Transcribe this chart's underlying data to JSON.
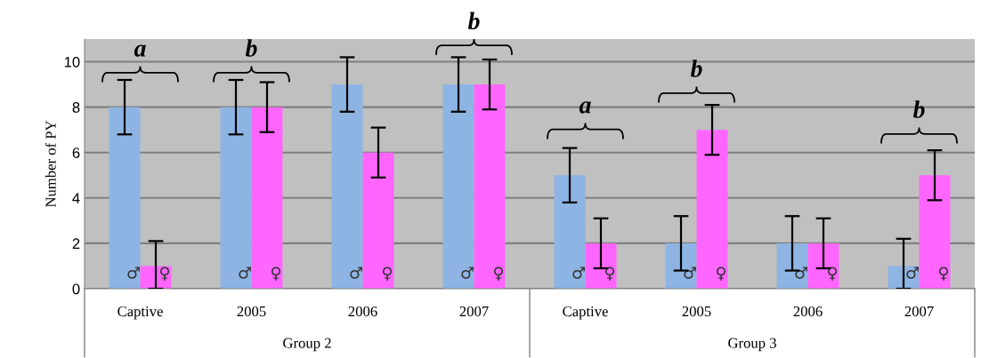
{
  "chart_data": {
    "type": "bar",
    "ylabel": "Number of PY",
    "categories": [
      "Captive",
      "2005",
      "2006",
      "2007",
      "Captive",
      "2005",
      "2006",
      "2007"
    ],
    "series": [
      {
        "name": "♂",
        "color": "#8eb4e3",
        "values": [
          8,
          8,
          9,
          9,
          5,
          2,
          2,
          1
        ],
        "errors": [
          [
            6.8,
            9.2
          ],
          [
            6.8,
            9.2
          ],
          [
            7.8,
            10.2
          ],
          [
            7.8,
            10.2
          ],
          [
            3.8,
            6.2
          ],
          [
            0.8,
            3.2
          ],
          [
            0.8,
            3.2
          ],
          [
            0,
            2.2
          ]
        ]
      },
      {
        "name": "♀",
        "color": "#ff66ff",
        "values": [
          1,
          8,
          6,
          9,
          2,
          7,
          2,
          5
        ],
        "errors": [
          [
            0,
            2.1
          ],
          [
            6.9,
            9.1
          ],
          [
            4.9,
            7.1
          ],
          [
            7.9,
            10.1
          ],
          [
            0.9,
            3.1
          ],
          [
            5.9,
            8.1
          ],
          [
            0.9,
            3.1
          ],
          [
            3.9,
            6.1
          ]
        ]
      }
    ],
    "ylim": [
      0,
      11
    ],
    "yticks": [
      0,
      2,
      4,
      6,
      8,
      10
    ],
    "grid": "y",
    "annotations": [
      "a",
      "b",
      "b",
      "a",
      "b",
      "b",
      "Group 2",
      "Group 3"
    ]
  }
}
